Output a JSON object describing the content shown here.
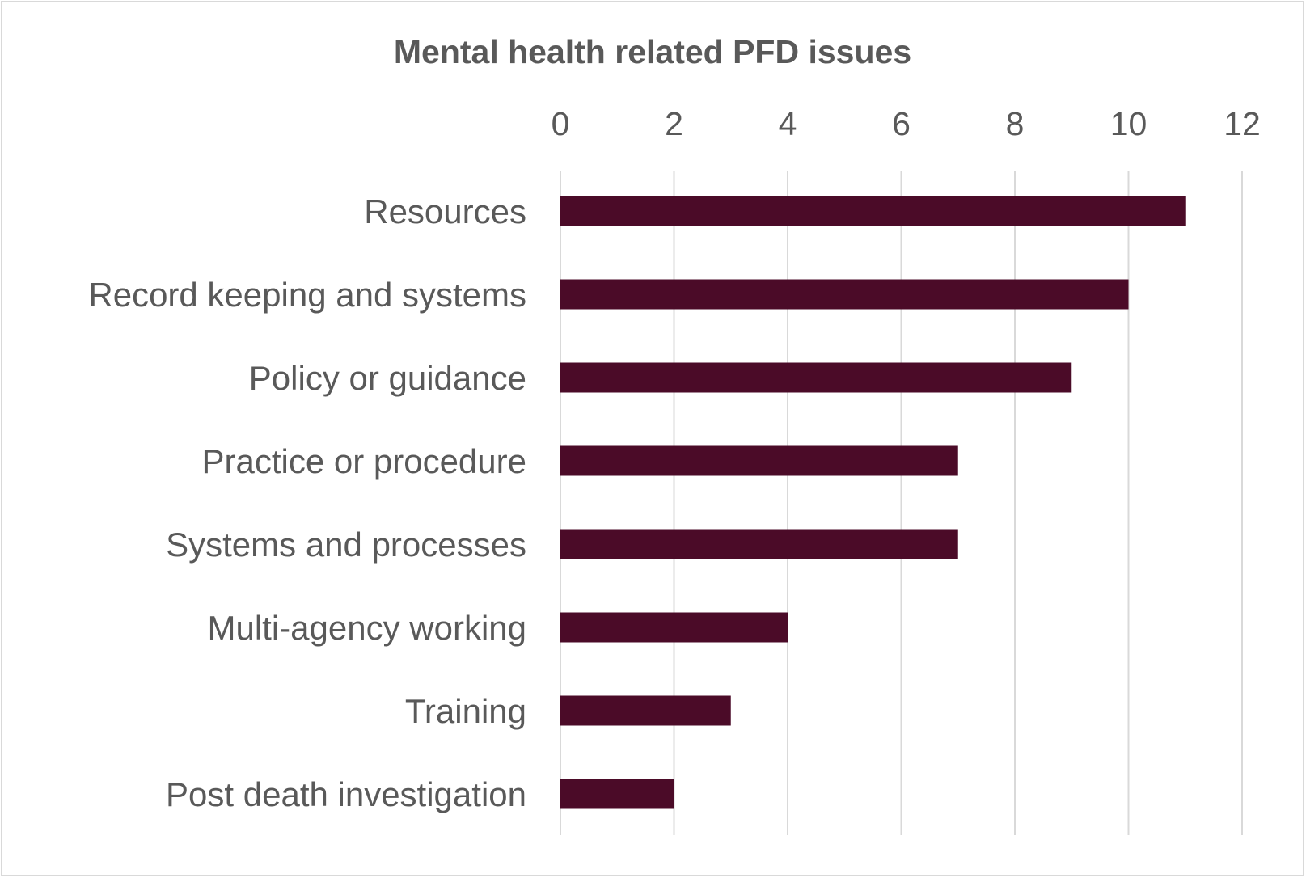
{
  "chart_data": {
    "type": "bar",
    "orientation": "horizontal",
    "title": "Mental health related PFD issues",
    "xlabel": "",
    "ylabel": "",
    "categories": [
      "Resources",
      "Record keeping and systems",
      "Policy or guidance",
      "Practice or procedure",
      "Systems and processes",
      "Multi-agency working",
      "Training",
      "Post death investigation"
    ],
    "values": [
      11,
      10,
      9,
      7,
      7,
      4,
      3,
      2
    ],
    "xlim": [
      0,
      12
    ],
    "xticks": [
      "0",
      "2",
      "4",
      "6",
      "8",
      "10",
      "12"
    ],
    "xaxis_position": "top",
    "grid": true,
    "legend": "none",
    "bar_color": "#4b0b28",
    "grid_color": "#d9d9d9"
  }
}
